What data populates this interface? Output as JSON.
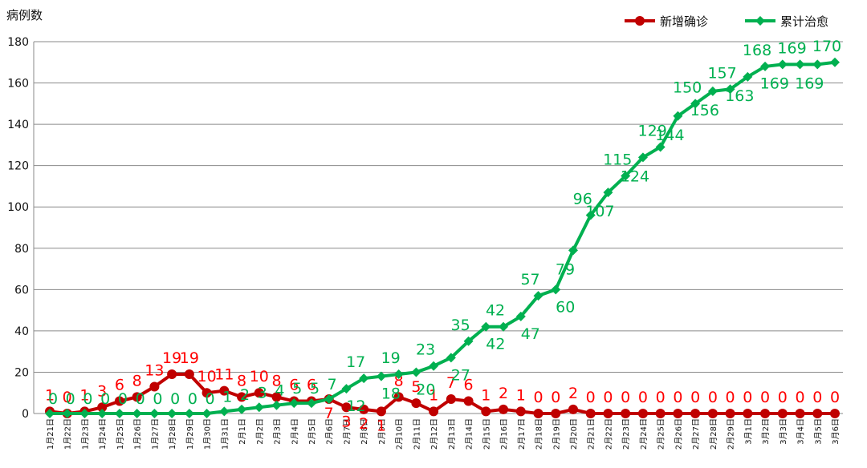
{
  "chart_data": {
    "type": "line",
    "title": "",
    "ylabel": "病例数",
    "xlabel": "",
    "ylim": [
      0,
      180
    ],
    "yticks": [
      0,
      20,
      40,
      60,
      80,
      100,
      120,
      140,
      160,
      180
    ],
    "grid": true,
    "legend_position": "top-right",
    "categories": [
      "1月21日",
      "1月22日",
      "1月23日",
      "1月24日",
      "1月25日",
      "1月26日",
      "1月27日",
      "1月28日",
      "1月29日",
      "1月30日",
      "1月31日",
      "2月1日",
      "2月2日",
      "2月3日",
      "2月4日",
      "2月5日",
      "2月6日",
      "2月7日",
      "2月8日",
      "2月9日",
      "2月10日",
      "2月11日",
      "2月12日",
      "2月13日",
      "2月14日",
      "2月15日",
      "2月16日",
      "2月17日",
      "2月18日",
      "2月19日",
      "2月20日",
      "2月21日",
      "2月22日",
      "2月23日",
      "2月24日",
      "2月25日",
      "2月26日",
      "2月27日",
      "2月28日",
      "2月29日",
      "3月1日",
      "3月2日",
      "3月3日",
      "3月4日",
      "3月5日",
      "3月6日"
    ],
    "series": [
      {
        "name": "新增确诊",
        "color": "#c00000",
        "label_color": "#ff0000",
        "values": [
          1,
          0,
          1,
          3,
          6,
          8,
          13,
          19,
          19,
          10,
          11,
          8,
          10,
          8,
          6,
          6,
          7,
          3,
          2,
          1,
          8,
          5,
          1,
          7,
          6,
          1,
          2,
          1,
          0,
          0,
          2,
          0,
          0,
          0,
          0,
          0,
          0,
          0,
          0,
          0,
          0,
          0,
          0,
          0,
          0,
          0
        ]
      },
      {
        "name": "累计治愈",
        "color": "#00b050",
        "label_color": "#00b050",
        "values": [
          0,
          0,
          0,
          0,
          0,
          0,
          0,
          0,
          0,
          0,
          1,
          2,
          3,
          4,
          5,
          5,
          7,
          12,
          17,
          18,
          19,
          20,
          23,
          27,
          35,
          42,
          42,
          47,
          57,
          60,
          79,
          96,
          107,
          115,
          124,
          129,
          144,
          150,
          156,
          157,
          163,
          168,
          169,
          169,
          169,
          170
        ]
      }
    ]
  }
}
